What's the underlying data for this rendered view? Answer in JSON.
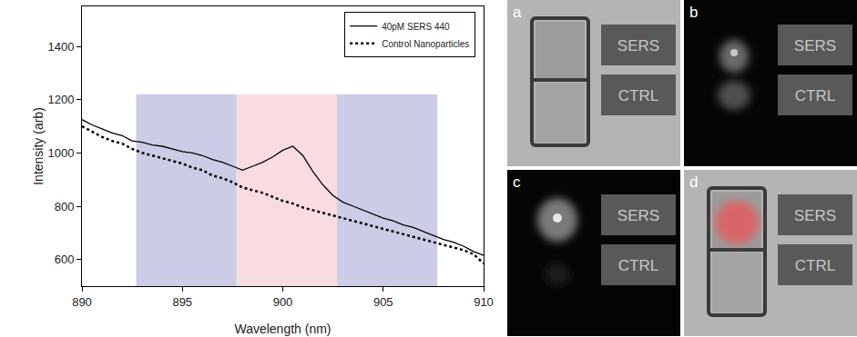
{
  "chart_data": {
    "type": "line",
    "x_title": "Wavelength (nm)",
    "y_title": "Intensity (arb)",
    "xlim": [
      890,
      910
    ],
    "xticks": [
      890,
      895,
      900,
      905,
      910
    ],
    "ylim": [
      500,
      1550
    ],
    "yticks": [
      600,
      800,
      1000,
      1200,
      1400
    ],
    "grid": false,
    "legend": "top-right",
    "x": [
      890,
      890.5,
      891,
      891.5,
      892,
      892.5,
      893,
      893.5,
      894,
      894.5,
      895,
      895.5,
      896,
      896.5,
      897,
      897.5,
      898,
      898.5,
      899,
      899.5,
      900,
      900.5,
      901,
      901.5,
      902,
      902.5,
      903,
      903.5,
      904,
      904.5,
      905,
      905.5,
      906,
      906.5,
      907,
      907.5,
      908,
      908.5,
      909,
      909.5,
      910
    ],
    "series": [
      {
        "name": "40pM SERS 440",
        "color": "#000000",
        "line_style": "solid",
        "values": [
          1125,
          1105,
          1090,
          1075,
          1065,
          1045,
          1040,
          1030,
          1025,
          1015,
          1005,
          1000,
          990,
          975,
          965,
          950,
          935,
          950,
          965,
          985,
          1010,
          1025,
          990,
          930,
          880,
          840,
          815,
          800,
          785,
          770,
          755,
          745,
          730,
          720,
          705,
          690,
          675,
          665,
          650,
          630,
          615
        ]
      },
      {
        "name": "Control Nanoparticles",
        "color": "#000000",
        "line_style": "dot",
        "values": [
          1100,
          1080,
          1060,
          1045,
          1035,
          1015,
          1000,
          990,
          980,
          970,
          960,
          945,
          935,
          915,
          905,
          890,
          870,
          860,
          850,
          835,
          820,
          810,
          795,
          785,
          775,
          765,
          755,
          745,
          735,
          725,
          715,
          705,
          695,
          685,
          675,
          665,
          655,
          645,
          635,
          620,
          585
        ]
      }
    ],
    "bands": [
      {
        "x": [
          892.7,
          897.7
        ],
        "y": [
          500,
          1220
        ],
        "color": "#cccce6"
      },
      {
        "x": [
          897.7,
          902.7
        ],
        "y": [
          500,
          1220
        ],
        "color": "#f9dcdf"
      },
      {
        "x": [
          902.7,
          907.7
        ],
        "y": [
          500,
          1220
        ],
        "color": "#cccce6"
      }
    ]
  },
  "panels": [
    {
      "label": "a",
      "boxes": [
        "SERS",
        "CTRL"
      ]
    },
    {
      "label": "b",
      "boxes": [
        "SERS",
        "CTRL"
      ]
    },
    {
      "label": "c",
      "boxes": [
        "SERS",
        "CTRL"
      ]
    },
    {
      "label": "d",
      "boxes": [
        "SERS",
        "CTRL"
      ]
    }
  ]
}
